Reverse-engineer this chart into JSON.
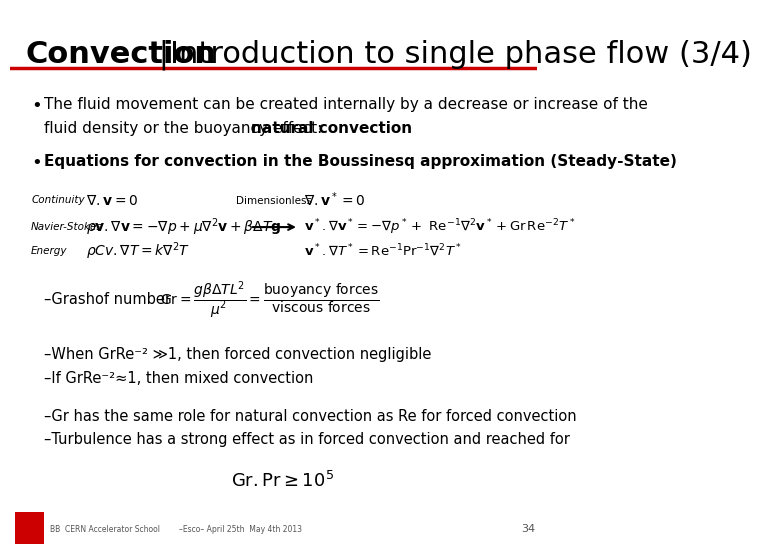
{
  "title_bold": "Convection",
  "title_separator": " | ",
  "title_regular": "Introduction to single phase flow (3/4)",
  "bg_color": "#ffffff",
  "separator_line_color": "#cc0000",
  "bullet1_line1": "The fluid movement can be created internally by a decrease or increase of the",
  "bullet1_line2_normal": "fluid density or the buoyancy effect: ",
  "bullet1_line2_bold": "natural convection",
  "bullet2": "Equations for convection in the Boussinesq approximation (Steady-State)",
  "label_continuity": "Continuity",
  "label_navier": "Navier-Stokes",
  "label_energy": "Energy",
  "label_dimensionless": "Dimensionless",
  "grashof_label": "–Grashof number",
  "line_when": "–When GrRe⁻² ≫1, then forced convection negligible",
  "line_if": "–If GrRe⁻²≈1, then mixed convection",
  "line_gr": "–Gr has the same role for natural convection as Re for forced convection",
  "line_turb": "–Turbulence has a strong effect as in forced convection and reached for",
  "footer_text": "BB  CERN Accelerator School        –Esco– April 25th  May 4th 2013",
  "page_number": "34",
  "footer_logo_color": "#cc0000"
}
